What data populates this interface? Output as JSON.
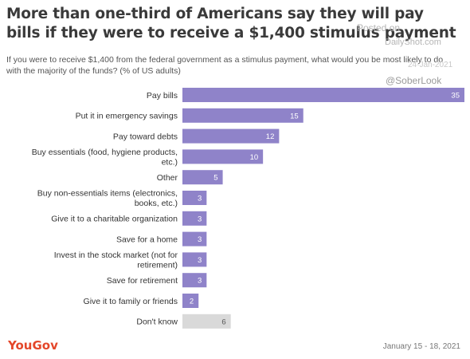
{
  "header": {
    "title": "More than one-third of Americans say they will pay bills if they were to receive a $1,400 stimulus payment",
    "subtitle": "If you were to receive $1,400 from the federal government as a stimulus payment, what would you be most likely to do with the majority of the funds? (% of US adults)"
  },
  "watermark": {
    "posted": "Posted on",
    "site": "DailyShot.com",
    "date": "24-Jan-2021",
    "handle": "@SoberLook"
  },
  "footer": {
    "brand": "YouGov",
    "fieldwork": "January 15 - 18, 2021"
  },
  "colors": {
    "bar": "#8f83c9",
    "neutral_bar": "#d9d9d9",
    "brand": "#e4472a",
    "value_on_bar": "#ffffff",
    "value_on_neutral": "#555555"
  },
  "chart_data": {
    "type": "bar",
    "orientation": "horizontal",
    "unit": "% of US adults",
    "xlim": [
      0,
      35
    ],
    "grid": false,
    "legend": "none",
    "categories": [
      [
        "Pay bills"
      ],
      [
        "Put it in emergency savings"
      ],
      [
        "Pay toward debts"
      ],
      [
        "Buy essentials (food, hygiene products,",
        "etc.)"
      ],
      [
        "Other"
      ],
      [
        "Buy non-essentials items (electronics,",
        "books, etc.)"
      ],
      [
        "Give it to a charitable organization"
      ],
      [
        "Save for a home"
      ],
      [
        "Invest in the stock market (not for",
        "retirement)"
      ],
      [
        "Save for retirement"
      ],
      [
        "Give it to family or friends"
      ],
      [
        "Don't know"
      ]
    ],
    "values": [
      35,
      15,
      12,
      10,
      5,
      3,
      3,
      3,
      3,
      3,
      2,
      6
    ],
    "neutral_categories": [
      "Don't know"
    ]
  }
}
